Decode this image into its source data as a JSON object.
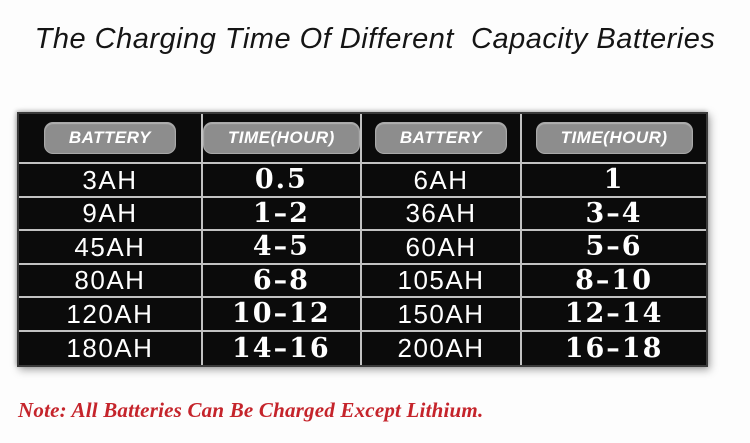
{
  "title": "The Charging Time Of Different  Capacity Batteries",
  "note": "Note: All Batteries Can Be Charged Except Lithium.",
  "table": {
    "columns": [
      "BATTERY",
      "TIME(HOUR)",
      "BATTERY",
      "TIME(HOUR)"
    ],
    "rows": [
      [
        "3AH",
        "0.5",
        "6AH",
        "1"
      ],
      [
        "9AH",
        "1–2",
        "36AH",
        "3–4"
      ],
      [
        "45AH",
        "4–5",
        "60AH",
        "5–6"
      ],
      [
        "80AH",
        "6–8",
        "105AH",
        "8–10"
      ],
      [
        "120AH",
        "10–12",
        "150AH",
        "12–14"
      ],
      [
        "180AH",
        "14–16",
        "200AH",
        "16–18"
      ]
    ]
  },
  "chart_data": {
    "type": "table",
    "title": "The Charging Time Of Different  Capacity Batteries",
    "columns": [
      "BATTERY",
      "TIME(HOUR)",
      "BATTERY",
      "TIME(HOUR)"
    ],
    "rows": [
      [
        "3AH",
        "0.5",
        "6AH",
        "1"
      ],
      [
        "9AH",
        "1–2",
        "36AH",
        "3–4"
      ],
      [
        "45AH",
        "4–5",
        "60AH",
        "5–6"
      ],
      [
        "80AH",
        "6–8",
        "105AH",
        "8–10"
      ],
      [
        "120AH",
        "10–12",
        "150AH",
        "12–14"
      ],
      [
        "180AH",
        "14–16",
        "200AH",
        "16–18"
      ]
    ],
    "battery_time_pairs": [
      {
        "battery": "3AH",
        "time_hours": "0.5"
      },
      {
        "battery": "6AH",
        "time_hours": "1"
      },
      {
        "battery": "9AH",
        "time_hours": "1–2"
      },
      {
        "battery": "36AH",
        "time_hours": "3–4"
      },
      {
        "battery": "45AH",
        "time_hours": "4–5"
      },
      {
        "battery": "60AH",
        "time_hours": "5–6"
      },
      {
        "battery": "80AH",
        "time_hours": "6–8"
      },
      {
        "battery": "105AH",
        "time_hours": "8–10"
      },
      {
        "battery": "120AH",
        "time_hours": "10–12"
      },
      {
        "battery": "150AH",
        "time_hours": "12–14"
      },
      {
        "battery": "180AH",
        "time_hours": "14–16"
      },
      {
        "battery": "200AH",
        "time_hours": "16–18"
      }
    ],
    "note": "Note: All Batteries Can Be Charged Except Lithium."
  },
  "colors": {
    "page_bg": "#fdfdfd",
    "table_bg": "#0b0b0b",
    "grid_line": "#c2c2c2",
    "table_border": "#3a3a3a",
    "pill_bg": "#8d8d8d",
    "pill_border": "#a9a9a9",
    "pill_text": "#ffffff",
    "cell_text": "#ffffff",
    "title_color": "#151515",
    "note_color": "#c5242b"
  }
}
